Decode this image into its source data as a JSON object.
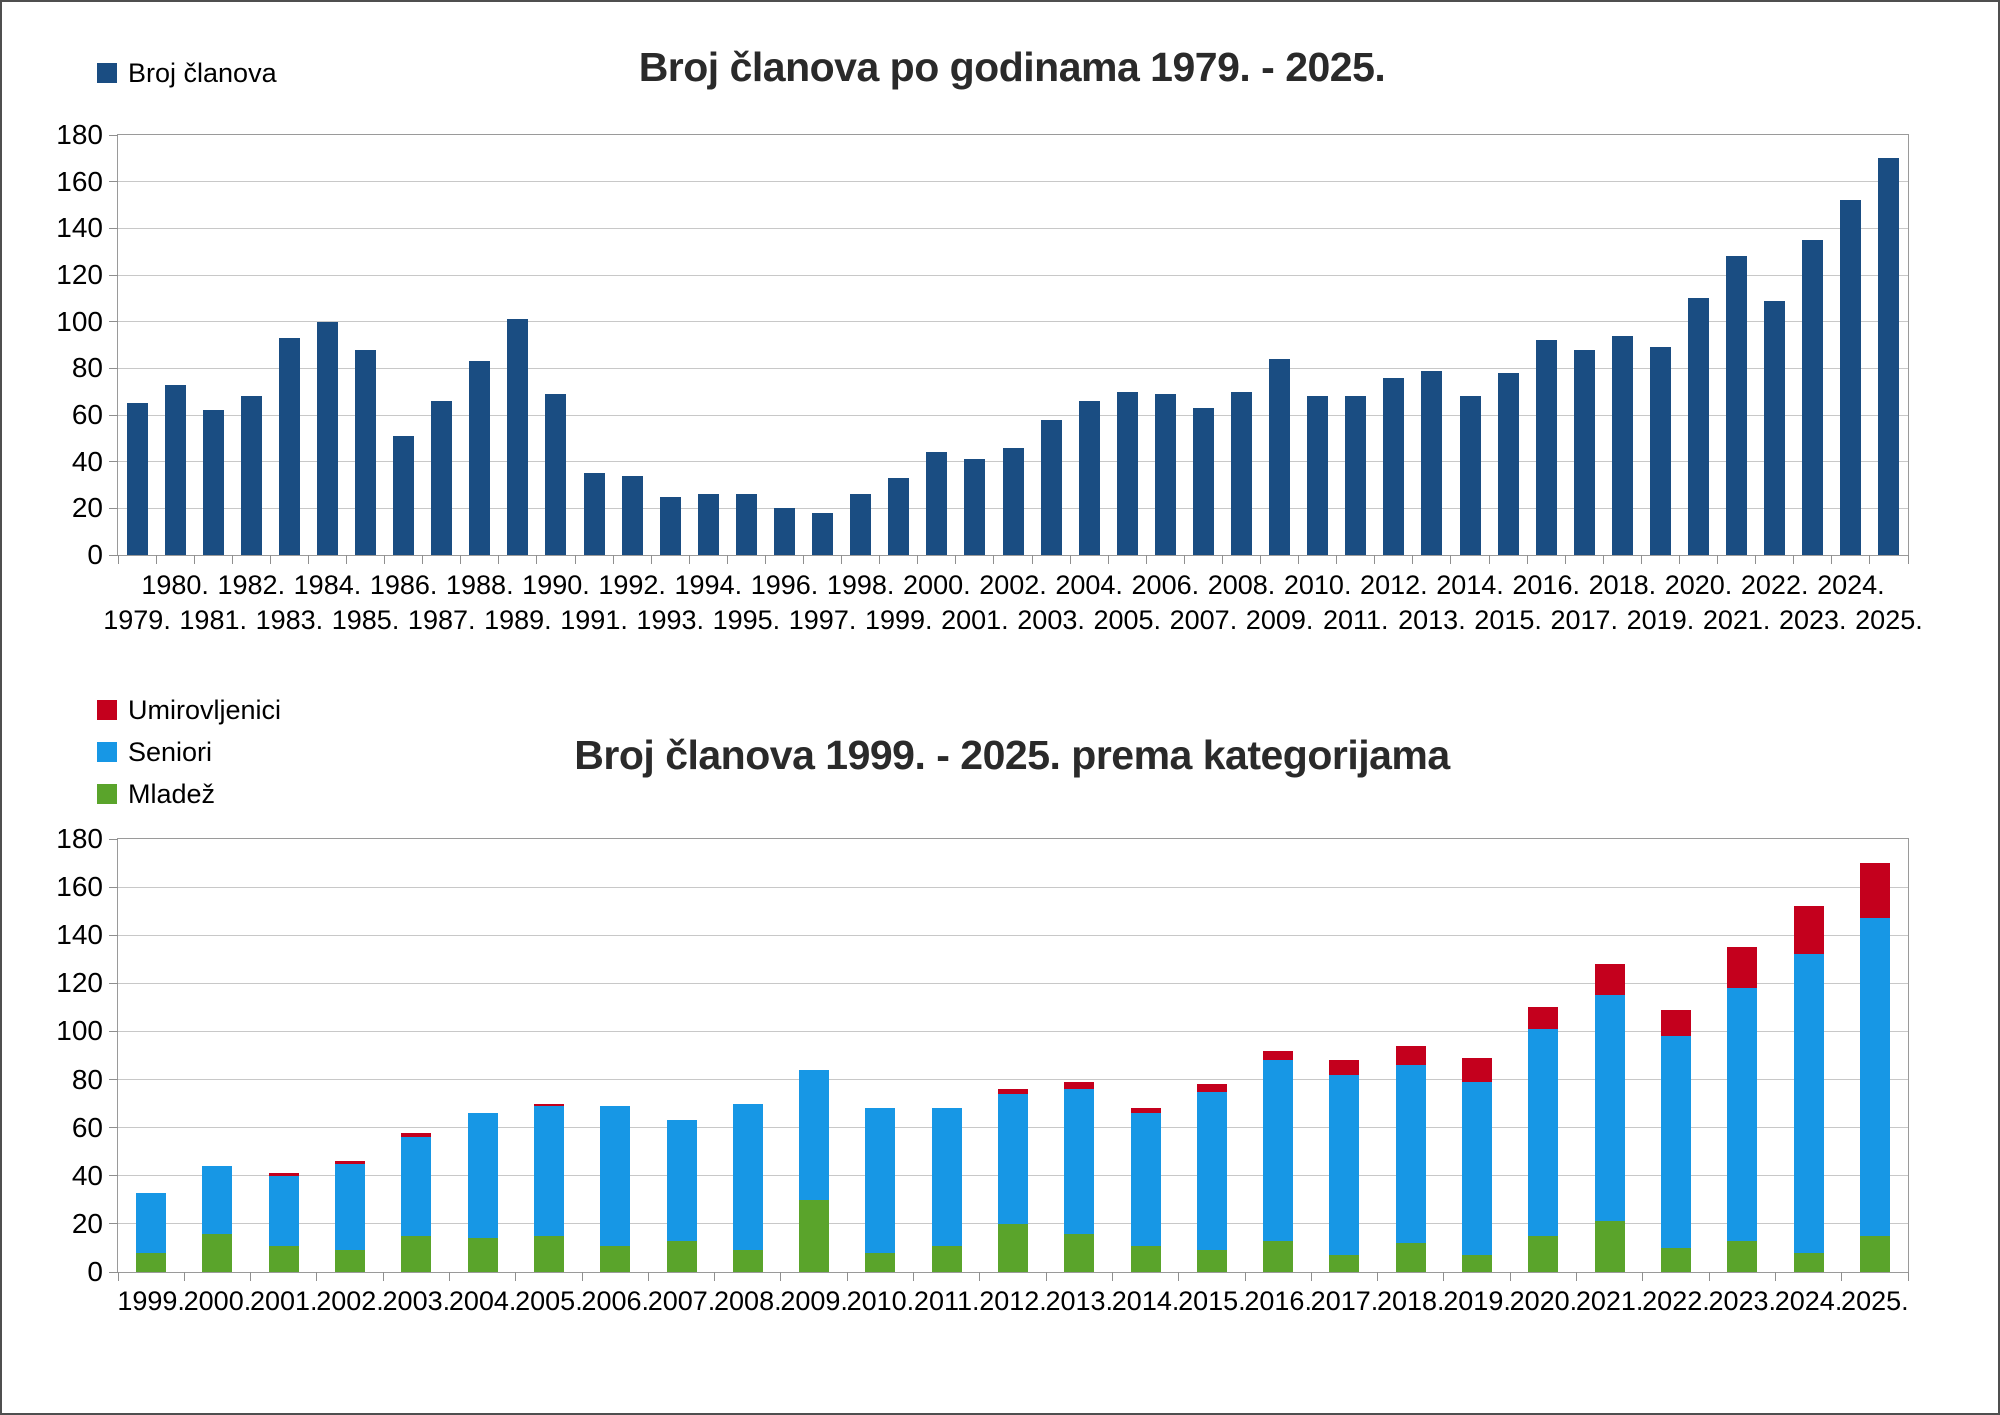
{
  "window": {
    "background": "#ffffff",
    "border_color": "#4f4f4f"
  },
  "colors": {
    "members_navy": "#1a4d82",
    "seniori_blue": "#1797e5",
    "mladez_green": "#5aa42b",
    "umirovljenici_red": "#c4001d",
    "grid": "#c8c8c8",
    "axis": "#8f8f8f",
    "title": "#2a2a2a"
  },
  "top_chart": {
    "title": "Broj članova po godinama 1979. - 2025.",
    "legend": [
      {
        "label": "Broj članova",
        "color": "#1a4d82"
      }
    ]
  },
  "bottom_chart": {
    "title": "Broj članova 1999. - 2025. prema kategorijama",
    "legend": [
      {
        "label": "Umirovljenici",
        "color": "#c4001d"
      },
      {
        "label": "Seniori",
        "color": "#1797e5"
      },
      {
        "label": "Mladež",
        "color": "#5aa42b"
      }
    ]
  },
  "chart_data": [
    {
      "type": "bar",
      "title": "Broj članova po godinama 1979. - 2025.",
      "legend": [
        "Broj članova"
      ],
      "legend_position": "top-left",
      "bar_color": "#1a4d82",
      "grid": true,
      "ylim": [
        0,
        180
      ],
      "ytick_step": 20,
      "xlabel": "",
      "ylabel": "",
      "categories": [
        "1979.",
        "1980.",
        "1981.",
        "1982.",
        "1983.",
        "1984.",
        "1985.",
        "1986.",
        "1987.",
        "1988.",
        "1989.",
        "1990.",
        "1991.",
        "1992.",
        "1993.",
        "1994.",
        "1995.",
        "1996.",
        "1997.",
        "1998.",
        "1999.",
        "2000.",
        "2001.",
        "2002.",
        "2003.",
        "2004.",
        "2005.",
        "2006.",
        "2007.",
        "2008.",
        "2009.",
        "2010.",
        "2011.",
        "2012.",
        "2013.",
        "2014.",
        "2015.",
        "2016.",
        "2017.",
        "2018.",
        "2019.",
        "2020.",
        "2021.",
        "2022.",
        "2023.",
        "2024.",
        "2025."
      ],
      "values": [
        65,
        73,
        62,
        68,
        93,
        100,
        88,
        51,
        66,
        83,
        101,
        69,
        35,
        34,
        25,
        26,
        26,
        20,
        18,
        26,
        33,
        44,
        41,
        46,
        58,
        66,
        70,
        69,
        63,
        70,
        84,
        68,
        68,
        76,
        79,
        68,
        78,
        92,
        88,
        94,
        89,
        110,
        128,
        109,
        135,
        152,
        170
      ]
    },
    {
      "type": "stacked-bar",
      "title": "Broj članova 1999. - 2025. prema kategorijama",
      "legend": [
        "Umirovljenici",
        "Seniori",
        "Mladež"
      ],
      "legend_position": "top-left",
      "grid": true,
      "ylim": [
        0,
        180
      ],
      "ytick_step": 20,
      "xlabel": "",
      "ylabel": "",
      "categories": [
        "1999.",
        "2000.",
        "2001.",
        "2002.",
        "2003.",
        "2004.",
        "2005.",
        "2006.",
        "2007.",
        "2008.",
        "2009.",
        "2010.",
        "2011.",
        "2012.",
        "2013.",
        "2014.",
        "2015.",
        "2016.",
        "2017.",
        "2018.",
        "2019.",
        "2020.",
        "2021.",
        "2022.",
        "2023.",
        "2024.",
        "2025."
      ],
      "series": [
        {
          "name": "Mladež",
          "color": "#5aa42b",
          "values": [
            8,
            16,
            11,
            9,
            15,
            14,
            15,
            11,
            13,
            9,
            30,
            8,
            11,
            20,
            16,
            11,
            9,
            13,
            7,
            12,
            7,
            15,
            21,
            10,
            13,
            8,
            15
          ]
        },
        {
          "name": "Seniori",
          "color": "#1797e5",
          "values": [
            25,
            28,
            29,
            36,
            41,
            52,
            54,
            58,
            50,
            61,
            54,
            60,
            57,
            54,
            60,
            55,
            66,
            75,
            75,
            74,
            72,
            86,
            94,
            88,
            105,
            124,
            132
          ]
        },
        {
          "name": "Umirovljenici",
          "color": "#c4001d",
          "values": [
            0,
            0,
            1,
            1,
            2,
            0,
            1,
            0,
            0,
            0,
            0,
            0,
            0,
            2,
            3,
            2,
            3,
            4,
            6,
            8,
            10,
            9,
            13,
            11,
            17,
            20,
            23
          ]
        }
      ],
      "totals": [
        33,
        44,
        41,
        46,
        58,
        66,
        70,
        69,
        63,
        70,
        84,
        68,
        68,
        76,
        79,
        68,
        78,
        92,
        88,
        94,
        89,
        110,
        128,
        109,
        135,
        152,
        170
      ]
    }
  ]
}
